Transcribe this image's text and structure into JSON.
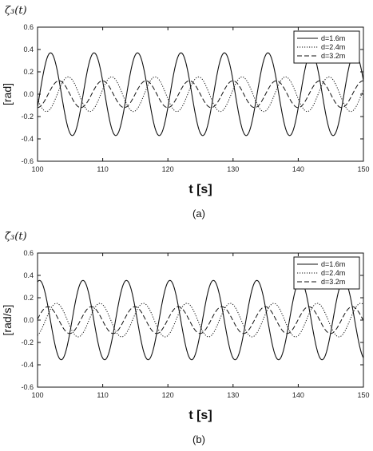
{
  "chart_data": [
    {
      "type": "line",
      "title": "ζ₃(t)",
      "caption": "(a)",
      "xlabel": "t [s]",
      "ylabel": "[rad]",
      "xlim": [
        100,
        150
      ],
      "ylim": [
        -0.6,
        0.6
      ],
      "xticks": [
        "100",
        "110",
        "120",
        "130",
        "140",
        "150"
      ],
      "yticks": [
        "0.6",
        "0.4",
        "0.2",
        "0.0",
        "-0.2",
        "-0.4",
        "-0.6"
      ],
      "legend_position": "top-right",
      "series": [
        {
          "name": "d=1.6m",
          "style": "solid",
          "amplitude": 0.37,
          "period": 6.67,
          "peak_at": 102.0
        },
        {
          "name": "d=2.4m",
          "style": "dotted",
          "amplitude": 0.155,
          "period": 6.67,
          "peak_at": 104.7
        },
        {
          "name": "d=3.2m",
          "style": "dashed",
          "amplitude": 0.12,
          "period": 6.67,
          "peak_at": 103.3
        }
      ]
    },
    {
      "type": "line",
      "title": "ζ̇₃(t)",
      "caption": "(b)",
      "xlabel": "t [s]",
      "ylabel": "[rad/s]",
      "xlim": [
        100,
        150
      ],
      "ylim": [
        -0.6,
        0.6
      ],
      "xticks": [
        "100",
        "110",
        "120",
        "130",
        "140",
        "150"
      ],
      "yticks": [
        "0.6",
        "0.4",
        "0.2",
        "0.0",
        "-0.2",
        "-0.4",
        "-0.6"
      ],
      "legend_position": "top-right",
      "series": [
        {
          "name": "d=1.6m",
          "style": "solid",
          "amplitude": 0.355,
          "period": 6.67,
          "peak_at": 100.3
        },
        {
          "name": "d=2.4m",
          "style": "dotted",
          "amplitude": 0.15,
          "period": 6.67,
          "peak_at": 102.9
        },
        {
          "name": "d=3.2m",
          "style": "dashed",
          "amplitude": 0.12,
          "period": 6.67,
          "peak_at": 101.6
        }
      ]
    }
  ]
}
